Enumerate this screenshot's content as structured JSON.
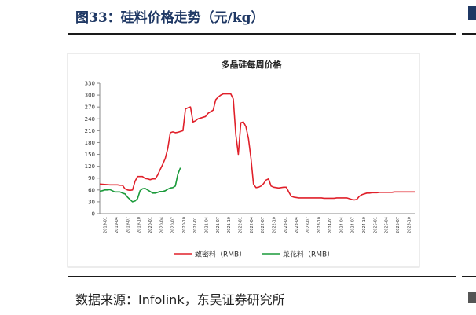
{
  "figure": {
    "title": "图33：硅料价格走势（元/kg）",
    "source": "数据来源：Infolink，东吴证券研究所"
  },
  "chart_data": {
    "type": "line",
    "title": "多晶硅每周价格",
    "xlabel": "",
    "ylabel": "",
    "ylim": [
      0,
      330
    ],
    "yticks": [
      0,
      30,
      60,
      90,
      120,
      150,
      180,
      210,
      240,
      270,
      300,
      330
    ],
    "grid": false,
    "legend_position": "bottom",
    "x_tick_labels": [
      "2019-01",
      "2019-04",
      "2019-07",
      "2019-10",
      "2020-01",
      "2020-04",
      "2020-07",
      "2020-10",
      "2021-01",
      "2021-04",
      "2021-07",
      "2021-10",
      "2022-01",
      "2022-04",
      "2022-07",
      "2022-10",
      "2023-01",
      "2023-04",
      "2023-07",
      "2023-10",
      "2024-01",
      "2024-04",
      "2024-07",
      "2024-10",
      "2025-01",
      "2025-04",
      "2025-07",
      "2025-10"
    ],
    "series": [
      {
        "name": "致密料（RMB）",
        "color": "#e0202a",
        "x": [
          0,
          4,
          8,
          12,
          14,
          16,
          18,
          20,
          22,
          24,
          26,
          28,
          30,
          32,
          34,
          36,
          38,
          40,
          42,
          44,
          46,
          48,
          50,
          52,
          54,
          56,
          58,
          60,
          62,
          64,
          66,
          68,
          70,
          72,
          74,
          76,
          78,
          80,
          82,
          84,
          86,
          88,
          90,
          92,
          94,
          96,
          98,
          100,
          102,
          104,
          106,
          108,
          110,
          112,
          114,
          116,
          118,
          120,
          122,
          124,
          126,
          128,
          130,
          132,
          134,
          136,
          138,
          140,
          142,
          144,
          146,
          148,
          150,
          152,
          154,
          156,
          158,
          160,
          162,
          164,
          166,
          168,
          170,
          172,
          174,
          176,
          178,
          180,
          182,
          184,
          186,
          188,
          190,
          192,
          194,
          196,
          198,
          200,
          202,
          204,
          206,
          208,
          210,
          212,
          214,
          216,
          218,
          220,
          222,
          224,
          226,
          228,
          230,
          232,
          234,
          236,
          238,
          240,
          242,
          244,
          246,
          248,
          250
        ],
        "values": [
          75,
          74,
          73,
          73,
          73,
          72,
          72,
          63,
          60,
          59,
          60,
          82,
          94,
          94,
          94,
          89,
          88,
          86,
          88,
          88,
          98,
          112,
          125,
          140,
          165,
          205,
          207,
          205,
          206,
          208,
          210,
          265,
          268,
          270,
          232,
          235,
          240,
          242,
          244,
          246,
          254,
          258,
          262,
          288,
          295,
          300,
          303,
          303,
          303,
          303,
          290,
          200,
          150,
          230,
          232,
          220,
          190,
          140,
          75,
          66,
          67,
          70,
          76,
          85,
          88,
          70,
          67,
          66,
          65,
          66,
          67,
          67,
          55,
          44,
          42,
          41,
          40,
          40,
          40,
          40,
          40,
          40,
          40,
          40,
          40,
          40,
          39,
          39,
          39,
          39,
          39,
          40,
          40,
          40,
          40,
          40,
          38,
          36,
          35,
          36,
          44,
          48,
          50,
          52,
          52,
          53,
          53,
          53,
          54,
          54,
          54,
          54,
          54,
          54,
          55,
          55,
          55,
          55,
          55,
          55,
          55,
          55,
          55
        ]
      },
      {
        "name": "菜花料（RMB）",
        "color": "#1a9a3a",
        "x": [
          0,
          2,
          4,
          6,
          8,
          10,
          12,
          14,
          16,
          18,
          20,
          22,
          24,
          26,
          28,
          30,
          32,
          34,
          36,
          38,
          40,
          42,
          44,
          46,
          48,
          50,
          52,
          54,
          56,
          58,
          60,
          62,
          64
        ],
        "values": [
          57,
          58,
          60,
          60,
          61,
          58,
          55,
          55,
          55,
          52,
          50,
          42,
          36,
          30,
          32,
          38,
          58,
          63,
          64,
          60,
          56,
          52,
          52,
          54,
          56,
          56,
          58,
          62,
          65,
          66,
          70,
          100,
          116
        ]
      }
    ]
  }
}
